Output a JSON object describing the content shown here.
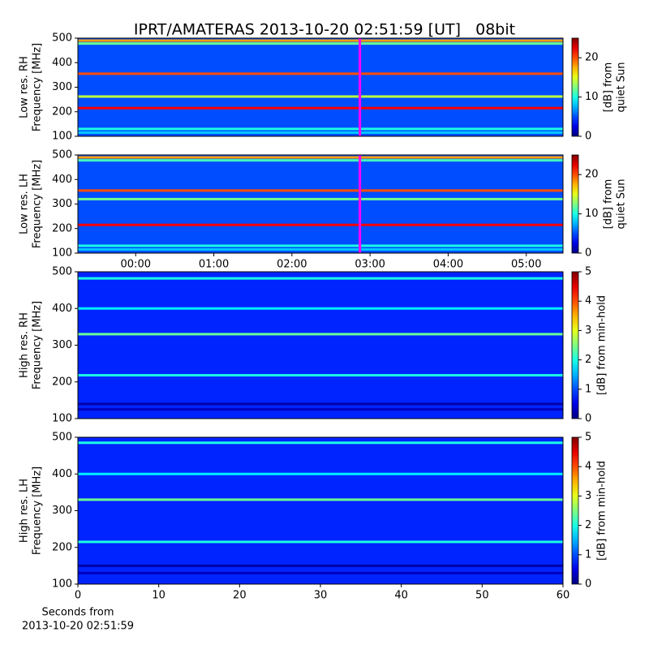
{
  "title": "IPRT/AMATERAS 2013-10-20 02:51:59 [UT]   08bit",
  "chart_data": [
    {
      "type": "heatmap",
      "ylabel": [
        "Low res. RH",
        "Frequency [MHz]"
      ],
      "xlim": [
        -0.74,
        5.47
      ],
      "ylim": [
        100,
        500
      ],
      "yticks": [
        100,
        200,
        300,
        400,
        500
      ],
      "clim": [
        0,
        25
      ],
      "cticks": [
        0,
        10,
        20
      ],
      "clabel": [
        "[dB] from",
        "quiet Sun"
      ],
      "background": 5,
      "bands": [
        {
          "y": 490,
          "value": 18
        },
        {
          "y": 478,
          "value": 12
        },
        {
          "y": 355,
          "value": 20
        },
        {
          "y": 262,
          "value": 14
        },
        {
          "y": 215,
          "value": 22
        },
        {
          "y": 130,
          "value": 10
        },
        {
          "y": 115,
          "value": 8
        }
      ],
      "marker": {
        "x": 2.87,
        "color": "#ff00ff"
      }
    },
    {
      "type": "heatmap",
      "ylabel": [
        "Low res. LH",
        "Frequency [MHz]"
      ],
      "xlim": [
        -0.74,
        5.47
      ],
      "ylim": [
        100,
        500
      ],
      "yticks": [
        100,
        200,
        300,
        400,
        500
      ],
      "xticks": [
        {
          "value": 0,
          "label": "00:00"
        },
        {
          "value": 1,
          "label": "01:00"
        },
        {
          "value": 2,
          "label": "02:00"
        },
        {
          "value": 3,
          "label": "03:00"
        },
        {
          "value": 4,
          "label": "04:00"
        },
        {
          "value": 5,
          "label": "05:00"
        }
      ],
      "clim": [
        0,
        25
      ],
      "cticks": [
        0,
        10,
        20
      ],
      "clabel": [
        "[dB] from",
        "quiet Sun"
      ],
      "background": 5,
      "bands": [
        {
          "y": 490,
          "value": 18
        },
        {
          "y": 478,
          "value": 11
        },
        {
          "y": 355,
          "value": 20
        },
        {
          "y": 320,
          "value": 12
        },
        {
          "y": 215,
          "value": 22
        },
        {
          "y": 130,
          "value": 10
        },
        {
          "y": 115,
          "value": 8
        }
      ],
      "marker": {
        "x": 2.87,
        "color": "#ff00ff"
      }
    },
    {
      "type": "heatmap",
      "ylabel": [
        "High res. RH",
        "Frequency [MHz]"
      ],
      "xlim": [
        0,
        60
      ],
      "ylim": [
        100,
        500
      ],
      "yticks": [
        100,
        200,
        300,
        400,
        500
      ],
      "clim": [
        0,
        5
      ],
      "cticks": [
        0,
        1,
        2,
        3,
        4,
        5
      ],
      "clabel": [
        "[dB] from min-hold"
      ],
      "background": 0.8,
      "bands": [
        {
          "y": 482,
          "value": 2
        },
        {
          "y": 400,
          "value": 1.8
        },
        {
          "y": 330,
          "value": 2.4
        },
        {
          "y": 218,
          "value": 2
        },
        {
          "y": 140,
          "value": 0.2
        },
        {
          "y": 125,
          "value": 0.3
        }
      ]
    },
    {
      "type": "heatmap",
      "ylabel": [
        "High res. LH",
        "Frequency [MHz]"
      ],
      "xlim": [
        0,
        60
      ],
      "ylim": [
        100,
        500
      ],
      "yticks": [
        100,
        200,
        300,
        400,
        500
      ],
      "xticks": [
        0,
        10,
        20,
        30,
        40,
        50,
        60
      ],
      "xlabel": [
        "Seconds from",
        "2013-10-20 02:51:59"
      ],
      "clim": [
        0,
        5
      ],
      "cticks": [
        0,
        1,
        2,
        3,
        4,
        5
      ],
      "clabel": [
        "[dB] from min-hold"
      ],
      "background": 0.8,
      "bands": [
        {
          "y": 485,
          "value": 2
        },
        {
          "y": 400,
          "value": 1.8
        },
        {
          "y": 330,
          "value": 2.4
        },
        {
          "y": 215,
          "value": 2
        },
        {
          "y": 150,
          "value": 0.2
        },
        {
          "y": 130,
          "value": 0.3
        }
      ]
    }
  ]
}
